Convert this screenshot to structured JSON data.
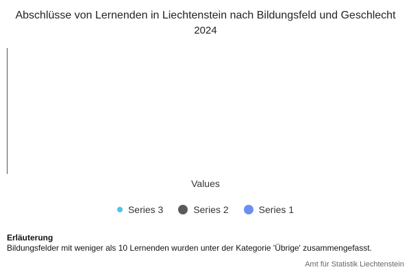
{
  "chart_data": {
    "type": "bar",
    "title": "Abschlüsse von Lernenden in Liechtenstein nach Bildungsfeld und Geschlecht",
    "subtitle": "2024",
    "categories": [],
    "ylabel": "Values",
    "grid": false,
    "legend_position": "bottom-center",
    "series": [
      {
        "name": "Series 3",
        "color": "#4cc3ee",
        "values": []
      },
      {
        "name": "Series 2",
        "color": "#5a5a5a",
        "values": []
      },
      {
        "name": "Series 1",
        "color": "#6b8ff2",
        "values": []
      }
    ]
  },
  "note": {
    "title": "Erläuterung",
    "text": "Bildungsfelder mit weniger als 10 Lernenden wurden unter der Kategorie 'Übrige' zusammengefasst."
  },
  "credits": "Amt für Statistik Liechtenstein"
}
